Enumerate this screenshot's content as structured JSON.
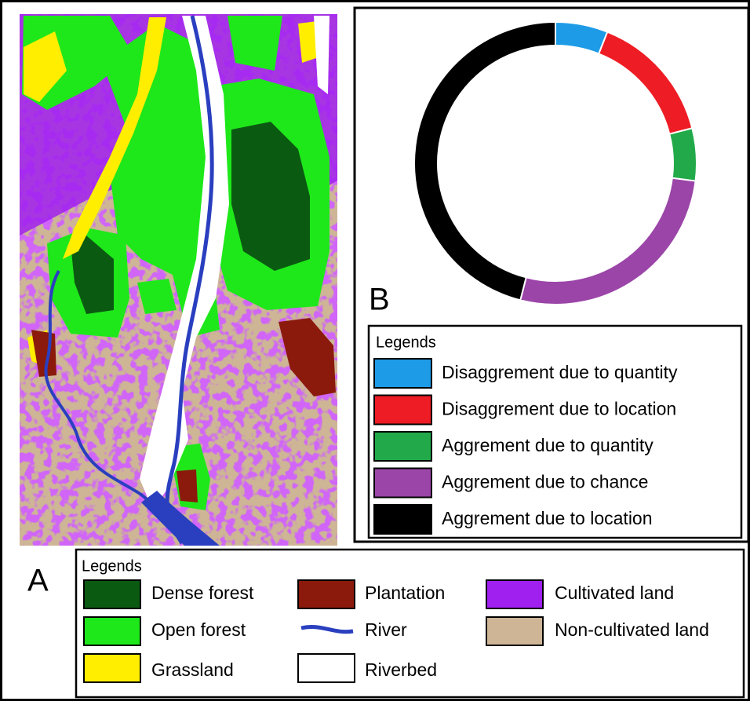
{
  "panel_a": {
    "label": "A",
    "legend": {
      "title": "Legends",
      "items": [
        {
          "name": "Dense forest",
          "color": "#0b5a12"
        },
        {
          "name": "Open forest",
          "color": "#1ee81a"
        },
        {
          "name": "Grassland",
          "color": "#ffee00"
        },
        {
          "name": "Plantation",
          "color": "#8b1a0c"
        },
        {
          "name": "River",
          "color": "#2a3fbf",
          "style": "line"
        },
        {
          "name": "Riverbed",
          "color": "#ffffff"
        },
        {
          "name": "Cultivated land",
          "color": "#a020f0"
        },
        {
          "name": "Non-cultivated land",
          "color": "#cdb595"
        }
      ]
    }
  },
  "chart_data": {
    "type": "donut",
    "label": "B",
    "legend_title": "Legends",
    "categories": [
      "Disaggrement due to quantity",
      "Disaggrement due to location",
      "Aggrement due to quantity",
      "Aggrement due to chance",
      "Aggrement due to location"
    ],
    "values": [
      6,
      15,
      6,
      27,
      46
    ],
    "colors": [
      "#1e9be6",
      "#ee1c24",
      "#22aa4a",
      "#9b45a8",
      "#000000"
    ]
  }
}
